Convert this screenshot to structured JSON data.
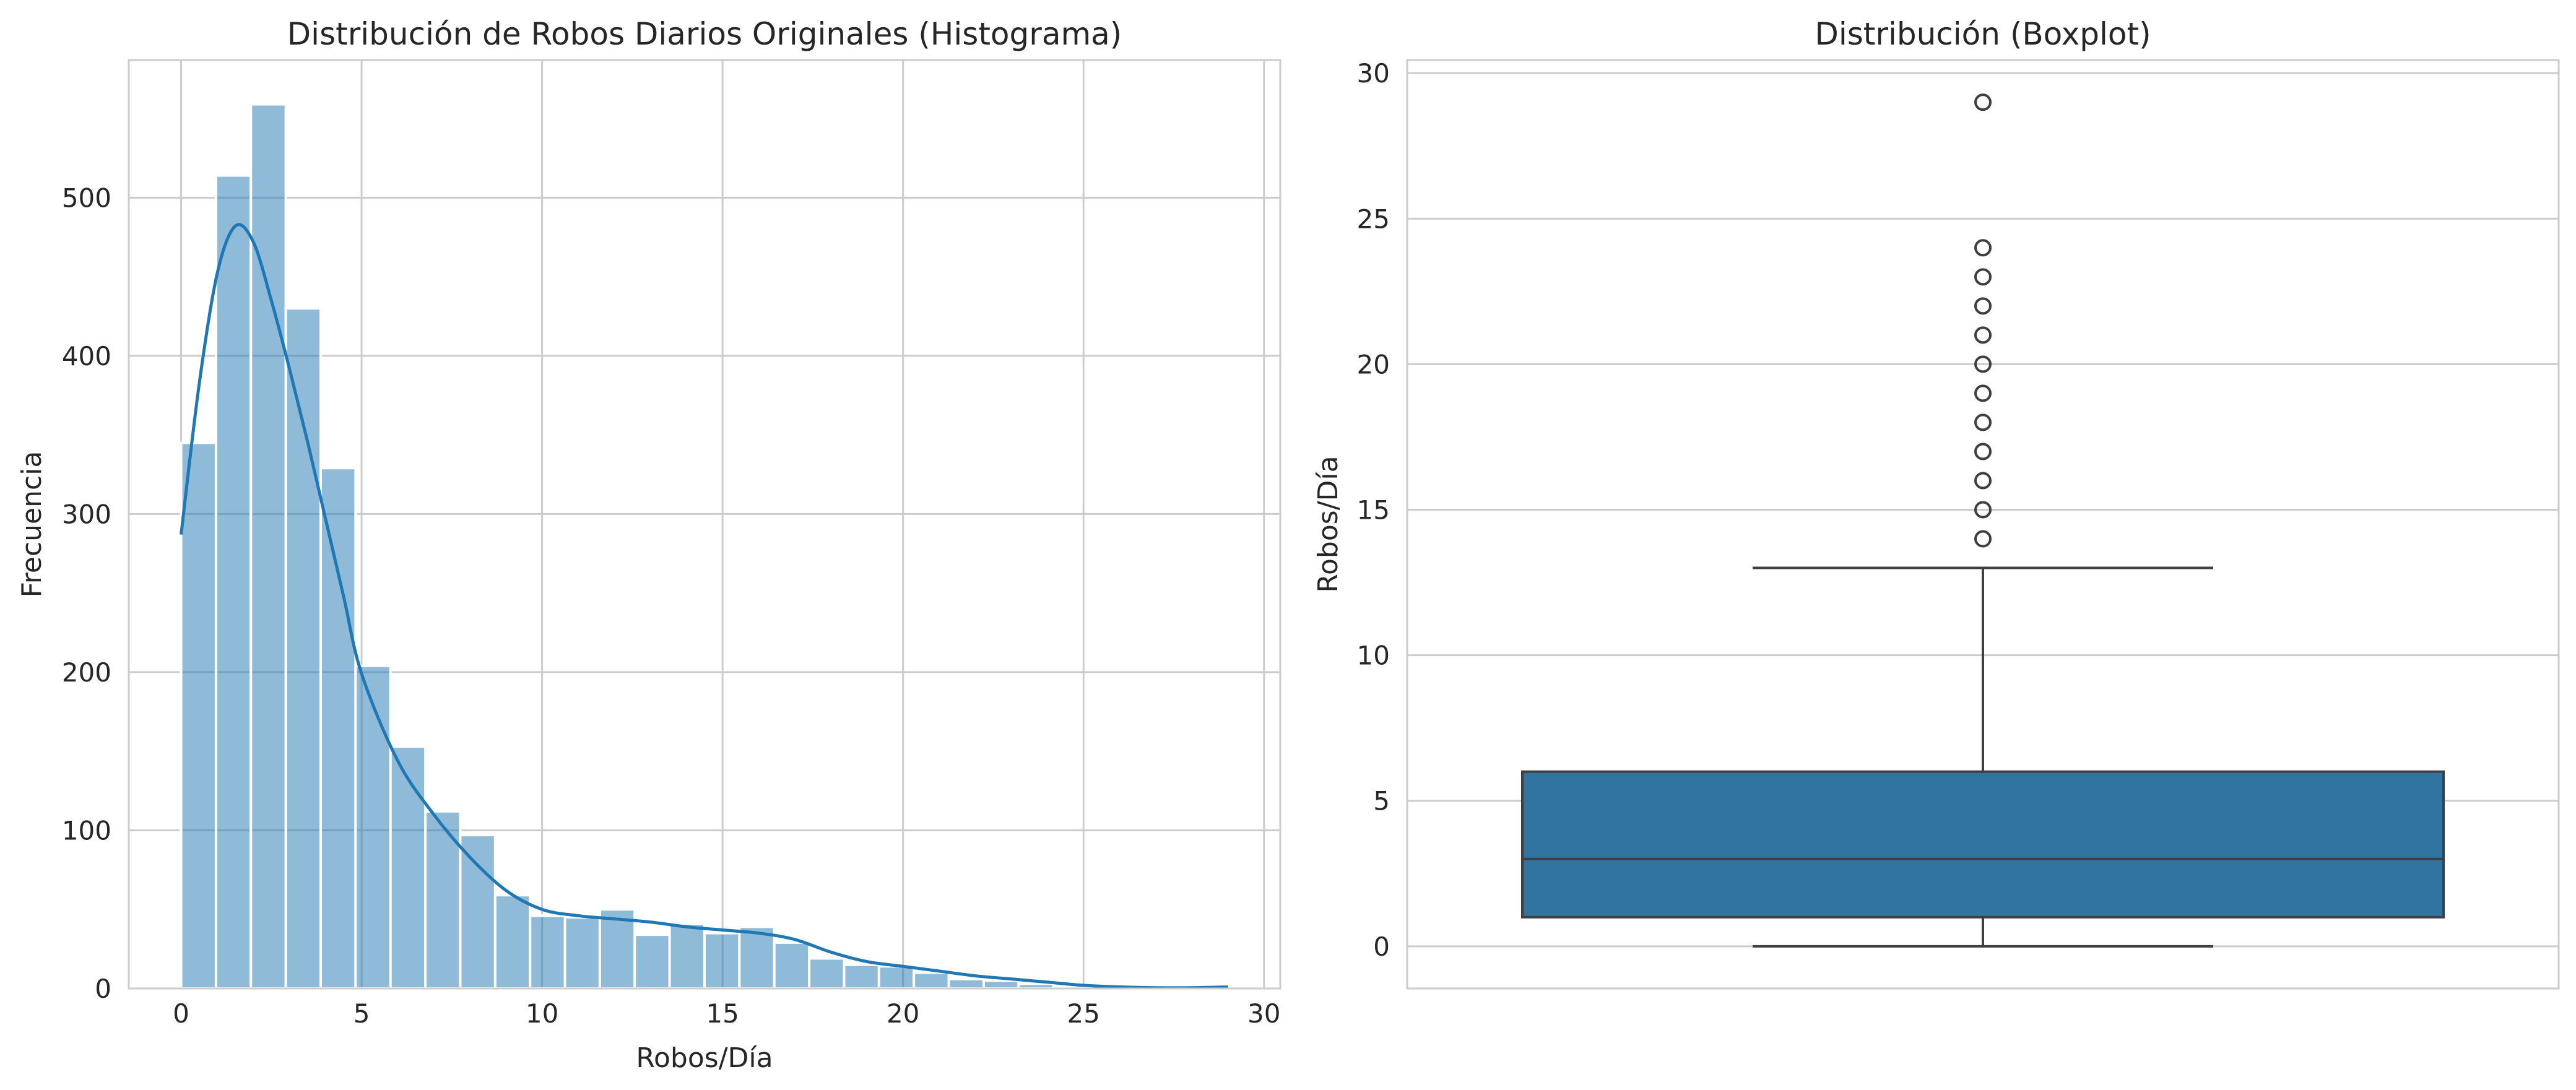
{
  "chart_data": [
    {
      "type": "bar",
      "subtype": "histogram",
      "title": "Distribución de Robos Diarios Originales (Histograma)",
      "xlabel": "Robos/Día",
      "ylabel": "Frecuencia",
      "xlim": [
        -1.45,
        30.45
      ],
      "ylim": [
        0,
        587
      ],
      "xticks": [
        0,
        5,
        10,
        15,
        20,
        25,
        30
      ],
      "yticks": [
        0,
        100,
        200,
        300,
        400,
        500
      ],
      "grid": true,
      "color": "#1f77b4",
      "bin_edges": [
        0,
        0.967,
        1.933,
        2.9,
        3.867,
        4.833,
        5.8,
        6.767,
        7.733,
        8.7,
        9.667,
        10.633,
        11.6,
        12.567,
        13.533,
        14.5,
        15.467,
        16.433,
        17.4,
        18.367,
        19.333,
        20.3,
        21.267,
        22.233,
        23.2,
        24.167,
        25.133,
        26.1,
        27.067,
        28.033,
        29.0
      ],
      "values": [
        345,
        514,
        559,
        430,
        329,
        204,
        153,
        112,
        97,
        59,
        46,
        45,
        50,
        34,
        41,
        35,
        39,
        29,
        19,
        15,
        14,
        10,
        6,
        5,
        3,
        1,
        0,
        0,
        0,
        1
      ],
      "kde": {
        "x": [
          0,
          0.5,
          1,
          1.5,
          2,
          2.5,
          3,
          3.5,
          4,
          4.5,
          5,
          6,
          7,
          8,
          9,
          10,
          11,
          12,
          13,
          14,
          15,
          16,
          17,
          18,
          19,
          20,
          21,
          22,
          23,
          24,
          25,
          26,
          27,
          28,
          29
        ],
        "y": [
          287,
          382,
          452,
          482,
          472,
          435,
          392,
          346,
          297,
          248,
          199,
          144,
          110,
          83,
          62,
          50,
          46,
          44,
          42,
          39,
          37,
          35,
          31,
          23,
          17,
          14,
          11,
          8,
          6,
          4,
          2,
          1,
          0.5,
          0.5,
          1
        ]
      }
    },
    {
      "type": "boxplot",
      "title": "Distribución (Boxplot)",
      "xlabel": "",
      "ylabel": "Robos/Día",
      "ylim": [
        -1.45,
        30.45
      ],
      "yticks": [
        0,
        5,
        10,
        15,
        20,
        25,
        30
      ],
      "grid": true,
      "color": "#3274a1",
      "whisker_low": 0,
      "q1": 1,
      "median": 3,
      "q3": 6,
      "whisker_high": 13,
      "outliers": [
        14,
        15,
        16,
        17,
        18,
        19,
        20,
        21,
        22,
        23,
        24,
        29
      ]
    }
  ]
}
